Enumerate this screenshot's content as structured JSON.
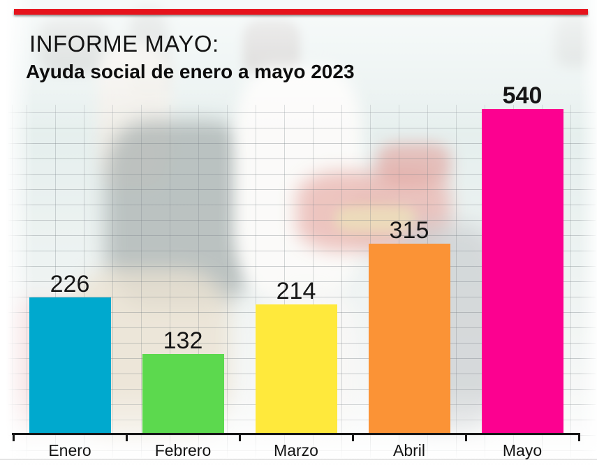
{
  "header": {
    "kicker": "INFORME MAYO:",
    "subtitle": "Ayuda social de enero a mayo 2023"
  },
  "chart_data": {
    "type": "bar",
    "title": "INFORME MAYO: Ayuda social de enero a mayo 2023",
    "categories": [
      "Enero",
      "Febrero",
      "Marzo",
      "Abril",
      "Mayo"
    ],
    "values": [
      226,
      132,
      214,
      315,
      540
    ],
    "bar_colors": [
      "#00a9ce",
      "#5cd94e",
      "#ffe93c",
      "#fb9336",
      "#fc0190"
    ],
    "xlabel": "",
    "ylabel": "",
    "ylim": [
      0,
      540
    ],
    "grid": true,
    "legend": false,
    "value_labels_shown": true,
    "emphasized_bar": "Mayo"
  },
  "style": {
    "top_bar_color": "#e6131c",
    "axis_color": "#161616",
    "text_color": "#141414"
  }
}
